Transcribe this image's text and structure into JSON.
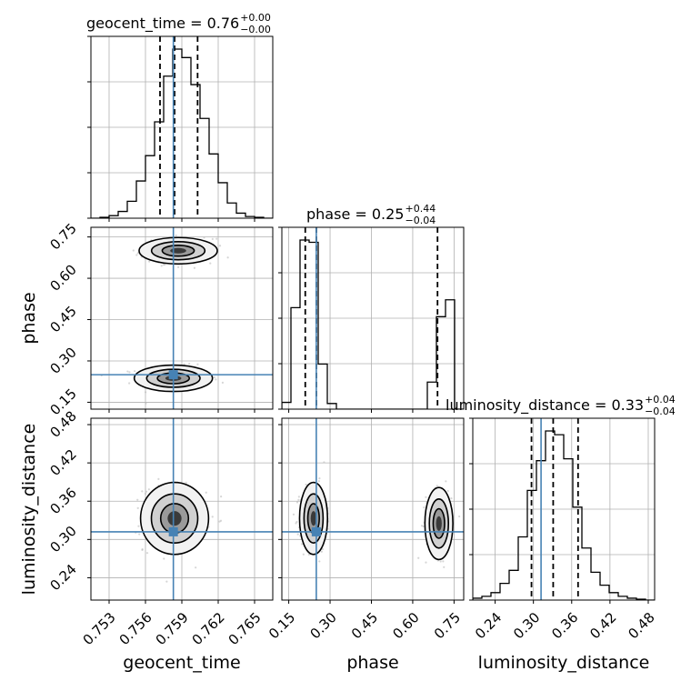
{
  "chart_data": {
    "type": "corner",
    "parameters": [
      "geocent_time",
      "phase",
      "luminosity_distance"
    ],
    "axis_labels": {
      "x": [
        "geocent_time",
        "phase",
        "luminosity_distance"
      ],
      "y": [
        "",
        "phase",
        "luminosity_distance"
      ]
    },
    "titles": [
      {
        "param": "geocent_time",
        "prefix": "geocent_time = ",
        "value": "0.76",
        "plus": "+0.00",
        "minus": "−0.00"
      },
      {
        "param": "phase",
        "prefix": "phase = ",
        "value": "0.25",
        "plus": "+0.44",
        "minus": "−0.04"
      },
      {
        "param": "luminosity_distance",
        "prefix": "luminosity_distance = ",
        "value": "0.33",
        "plus": "+0.04",
        "minus": "−0.04"
      }
    ],
    "ranges": {
      "geocent_time": [
        0.7515,
        0.7665
      ],
      "phase": [
        0.125,
        0.785
      ],
      "luminosity_distance": [
        0.205,
        0.49
      ]
    },
    "ticks": {
      "geocent_time": [
        "0.753",
        "0.756",
        "0.759",
        "0.762",
        "0.765"
      ],
      "phase": [
        "0.15",
        "0.30",
        "0.45",
        "0.60",
        "0.75"
      ],
      "luminosity_distance": [
        "0.24",
        "0.30",
        "0.36",
        "0.42",
        "0.48"
      ]
    },
    "truths": {
      "geocent_time": 0.7583,
      "phase": 0.25,
      "luminosity_distance": 0.312
    },
    "quantiles": {
      "geocent_time": [
        0.7572,
        0.7584,
        0.7603
      ],
      "phase": [
        0.21,
        0.25,
        0.69
      ],
      "luminosity_distance": [
        0.297,
        0.331,
        0.37
      ]
    },
    "histograms": {
      "geocent_time": {
        "edges": [
          0.7515,
          0.75225,
          0.753,
          0.75375,
          0.7545,
          0.75525,
          0.756,
          0.75675,
          0.7575,
          0.75825,
          0.759,
          0.75975,
          0.7605,
          0.76125,
          0.762,
          0.76275,
          0.7635,
          0.76425,
          0.765,
          0.76575,
          0.7665
        ],
        "counts": [
          0,
          1,
          3,
          8,
          20,
          44,
          74,
          114,
          168,
          200,
          190,
          158,
          118,
          76,
          42,
          18,
          6,
          2,
          1,
          0
        ]
      },
      "phase": {
        "edges": [
          0.125,
          0.158,
          0.191,
          0.224,
          0.257,
          0.29,
          0.323,
          0.356,
          0.389,
          0.422,
          0.455,
          0.488,
          0.521,
          0.554,
          0.587,
          0.62,
          0.653,
          0.686,
          0.719,
          0.752,
          0.785
        ],
        "counts": [
          6,
          90,
          150,
          148,
          40,
          5,
          0,
          0,
          0,
          0,
          0,
          0,
          0,
          0,
          0,
          0,
          24,
          82,
          97,
          0
        ]
      },
      "luminosity_distance": {
        "edges": [
          0.205,
          0.21925,
          0.2335,
          0.24775,
          0.262,
          0.27625,
          0.2905,
          0.30475,
          0.319,
          0.33325,
          0.3475,
          0.36175,
          0.376,
          0.39025,
          0.4045,
          0.41875,
          0.433,
          0.44725,
          0.4615,
          0.47575,
          0.49
        ],
        "counts": [
          2,
          4,
          8,
          18,
          32,
          68,
          118,
          150,
          182,
          178,
          152,
          100,
          56,
          30,
          16,
          8,
          4,
          2,
          1,
          0
        ]
      }
    },
    "contour_means": {
      "phase_vs_geocent_time": [
        [
          0.7583,
          0.237
        ],
        [
          0.7587,
          0.7
        ]
      ],
      "luminosity_distance_vs_geocent_time": [
        [
          0.7584,
          0.333
        ]
      ],
      "luminosity_distance_vs_phase": [
        [
          0.24,
          0.333
        ],
        [
          0.695,
          0.325
        ]
      ]
    },
    "colors": {
      "truth": "#4682b4",
      "hist": "#000000",
      "grid": "#b0b0b0",
      "points": "#bbbbbb"
    }
  }
}
